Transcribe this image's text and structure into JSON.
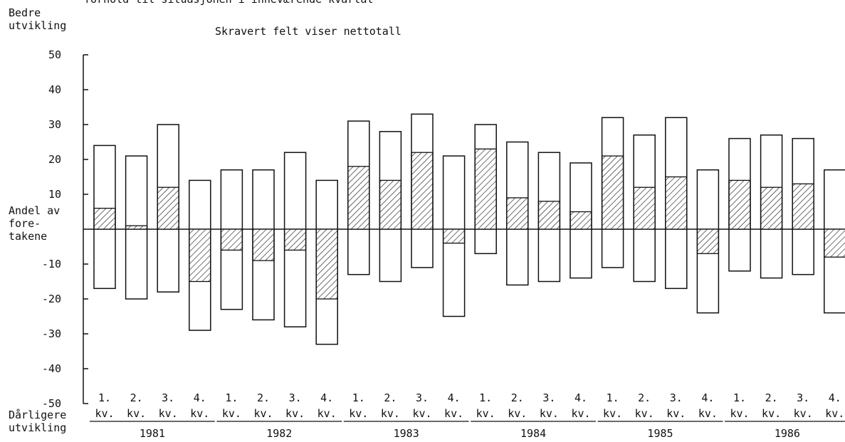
{
  "texts": {
    "header_cut": "forhold til situasjonen i inneværende kvartal",
    "top_label": "Bedre\nutvikling",
    "bottom_label": "Dårligere\nutvikling",
    "share_label": "Andel av\nfore-\ntakene",
    "hatch_note": "Skravert felt viser nettotall"
  },
  "chart_data": {
    "type": "bar",
    "ylim": [
      -50,
      50
    ],
    "yticks": [
      50,
      40,
      30,
      20,
      10,
      -10,
      -20,
      -30,
      -40,
      -50
    ],
    "grid": false,
    "quarter_label": "kv.",
    "years": [
      "1981",
      "1982",
      "1983",
      "1984",
      "1985",
      "1986"
    ],
    "categories": [
      "1981 1.",
      "1981 2.",
      "1981 3.",
      "1981 4.",
      "1982 1.",
      "1982 2.",
      "1982 3.",
      "1982 4.",
      "1983 1.",
      "1983 2.",
      "1983 3.",
      "1983 4.",
      "1984 1.",
      "1984 2.",
      "1984 3.",
      "1984 4.",
      "1985 1.",
      "1985 2.",
      "1985 3.",
      "1985 4.",
      "1986 1.",
      "1986 2.",
      "1986 3.",
      "1986 4."
    ],
    "quarters": [
      "1.",
      "2.",
      "3.",
      "4.",
      "1.",
      "2.",
      "3.",
      "4.",
      "1.",
      "2.",
      "3.",
      "4.",
      "1.",
      "2.",
      "3.",
      "4.",
      "1.",
      "2.",
      "3.",
      "4.",
      "1.",
      "2.",
      "3.",
      "4."
    ],
    "series": [
      {
        "name": "Bedre utvikling",
        "values": [
          24,
          21,
          30,
          14,
          17,
          17,
          22,
          14,
          31,
          28,
          33,
          21,
          30,
          25,
          22,
          19,
          32,
          27,
          32,
          17,
          26,
          27,
          26,
          17
        ]
      },
      {
        "name": "Dårligere utvikling",
        "values": [
          -17,
          -20,
          -18,
          -29,
          -23,
          -26,
          -28,
          -33,
          -13,
          -15,
          -11,
          -25,
          -7,
          -16,
          -15,
          -14,
          -11,
          -15,
          -17,
          -24,
          -12,
          -14,
          -13,
          -24
        ]
      },
      {
        "name": "Skravert felt viser nettotall",
        "values": [
          6,
          1,
          12,
          -15,
          -6,
          -9,
          -6,
          -20,
          18,
          14,
          22,
          -4,
          23,
          9,
          8,
          5,
          21,
          12,
          15,
          -7,
          14,
          12,
          13,
          -8
        ]
      }
    ]
  }
}
